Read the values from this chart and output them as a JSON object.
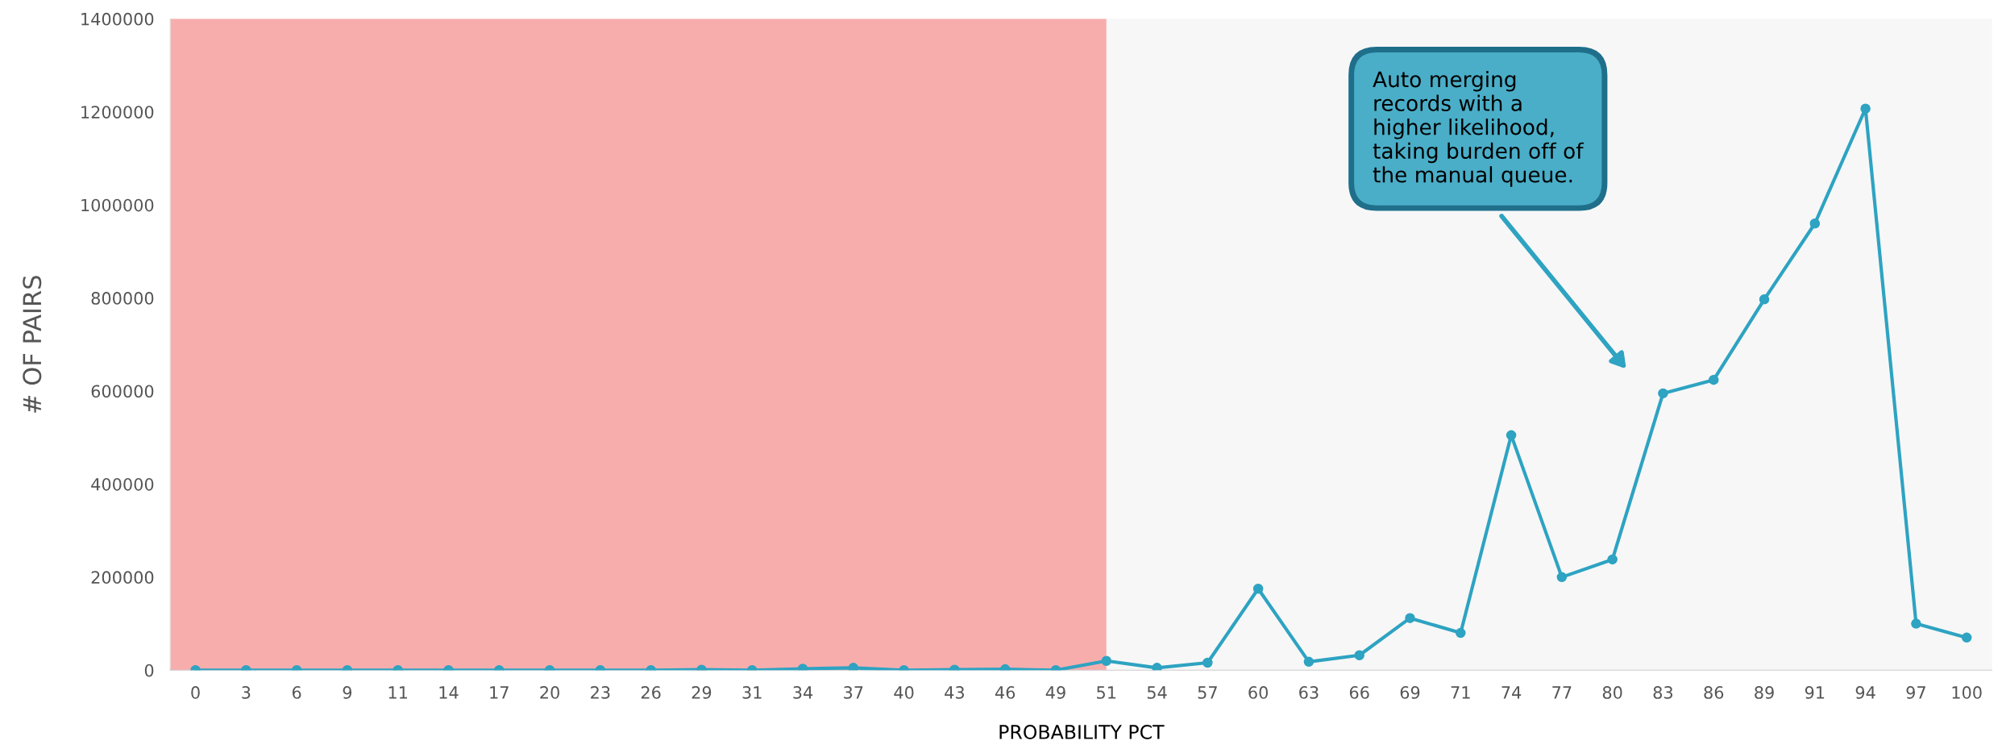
{
  "chart_data": {
    "type": "line",
    "xlabel": "PROBABILITY PCT",
    "ylabel": "# OF PAIRS",
    "categories": [
      "0",
      "3",
      "6",
      "9",
      "11",
      "14",
      "17",
      "20",
      "23",
      "26",
      "29",
      "31",
      "34",
      "37",
      "40",
      "43",
      "46",
      "49",
      "51",
      "54",
      "57",
      "60",
      "63",
      "66",
      "69",
      "71",
      "74",
      "77",
      "80",
      "83",
      "86",
      "89",
      "91",
      "94",
      "97",
      "100"
    ],
    "series": [
      {
        "color": "#2ea3c2",
        "values": [
          0,
          0,
          0,
          0,
          0,
          0,
          0,
          0,
          0,
          0,
          1000,
          0,
          3000,
          5000,
          0,
          1000,
          2000,
          0,
          20000,
          5000,
          16000,
          175000,
          18000,
          32000,
          112000,
          80000,
          505000,
          200000,
          238000,
          595000,
          624000,
          797000,
          960000,
          1207000,
          100000,
          70000
        ]
      }
    ],
    "ylim": [
      0,
      1400000
    ],
    "yticks": [
      0,
      200000,
      400000,
      600000,
      800000,
      1000000,
      1200000,
      1400000
    ],
    "marker": "circle",
    "grid": false,
    "legend": false,
    "bands": [
      {
        "axis": "x",
        "from": "0",
        "to": "51",
        "color": "#f8adad"
      }
    ],
    "annotations": [
      "Auto merging\nrecords with a\nhigher likelihood,\ntaking burden off of\nthe manual queue."
    ]
  }
}
